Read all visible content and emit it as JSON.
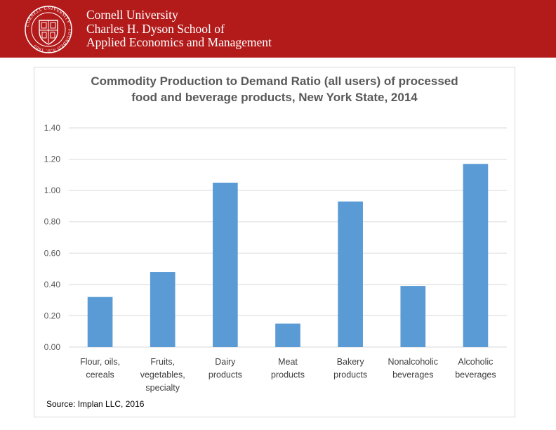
{
  "header": {
    "seal_text": "CORNELL UNIVERSITY · FOUNDED A.D. 1865",
    "line1": "Cornell University",
    "line2": "Charles H. Dyson School of",
    "line3": "Applied Economics and Management"
  },
  "chart_data": {
    "type": "bar",
    "title_line1": "Commodity Production to Demand Ratio (all users) of processed",
    "title_line2": "food and beverage products, New York State, 2014",
    "categories": [
      [
        "Flour, oils,",
        "cereals"
      ],
      [
        "Fruits,",
        "vegetables,",
        "specialty"
      ],
      [
        "Dairy",
        "products"
      ],
      [
        "Meat",
        "products"
      ],
      [
        "Bakery",
        "products"
      ],
      [
        "Nonalcoholic",
        "beverages"
      ],
      [
        "Alcoholic",
        "beverages"
      ]
    ],
    "values": [
      0.32,
      0.48,
      1.05,
      0.15,
      0.93,
      0.39,
      1.17
    ],
    "ylim": [
      0,
      1.4
    ],
    "yticks": [
      "0.00",
      "0.20",
      "0.40",
      "0.60",
      "0.80",
      "1.00",
      "1.20",
      "1.40"
    ],
    "xlabel": "",
    "ylabel": "",
    "grid": true,
    "bar_color": "#5b9bd5",
    "grid_color": "#d9d9d9"
  },
  "source": "Source: Implan LLC, 2016",
  "colors": {
    "brand_red": "#b31b1b"
  }
}
